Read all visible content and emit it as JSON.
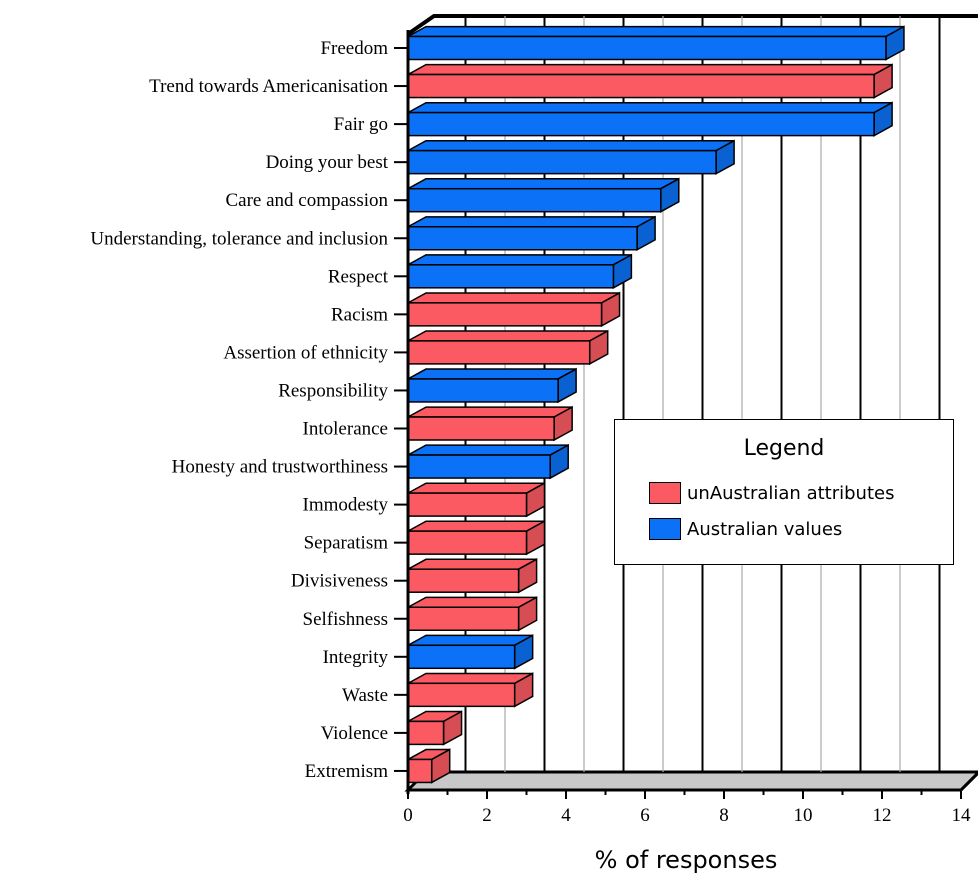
{
  "chart_data": {
    "type": "bar",
    "orientation": "horizontal",
    "style": "3d",
    "xlabel": "% of responses",
    "xlim": [
      0,
      14
    ],
    "xticks": [
      0,
      2,
      4,
      6,
      8,
      10,
      12,
      14
    ],
    "grid": true,
    "legend": {
      "title": "Legend",
      "placement": "right-middle",
      "entries": [
        {
          "name": "unAustralian attributes",
          "color": "#fc5a63"
        },
        {
          "name": "Australian values",
          "color": "#0b72f7"
        }
      ]
    },
    "categories": [
      "Freedom",
      "Trend towards Americanisation",
      "Fair go",
      "Doing your best",
      "Care and compassion",
      "Understanding, tolerance and inclusion",
      "Respect",
      "Racism",
      "Assertion of ethnicity",
      "Responsibility",
      "Intolerance",
      "Honesty and trustworthiness",
      "Immodesty",
      "Separatism",
      "Divisiveness",
      "Selfishness",
      "Integrity",
      "Waste",
      "Violence",
      "Extremism"
    ],
    "values": [
      12.1,
      11.8,
      11.8,
      7.8,
      6.4,
      5.8,
      5.2,
      4.9,
      4.6,
      3.8,
      3.7,
      3.6,
      3.0,
      3.0,
      2.8,
      2.8,
      2.7,
      2.7,
      0.9,
      0.6
    ],
    "groups": [
      "Australian values",
      "unAustralian attributes",
      "Australian values",
      "Australian values",
      "Australian values",
      "Australian values",
      "Australian values",
      "unAustralian attributes",
      "unAustralian attributes",
      "Australian values",
      "unAustralian attributes",
      "Australian values",
      "unAustralian attributes",
      "unAustralian attributes",
      "unAustralian attributes",
      "unAustralian attributes",
      "Australian values",
      "unAustralian attributes",
      "unAustralian attributes",
      "unAustralian attributes"
    ]
  }
}
